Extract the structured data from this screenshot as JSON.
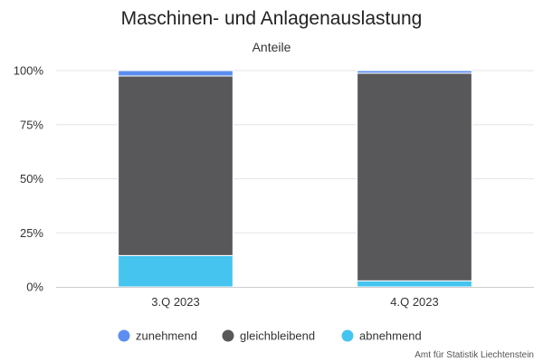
{
  "chart_data": {
    "type": "bar",
    "stacked": true,
    "title": "Maschinen- und Anlagenauslastung",
    "subtitle": "Anteile",
    "categories": [
      "3.Q 2023",
      "4.Q 2023"
    ],
    "series": [
      {
        "name": "abnehmend",
        "values": [
          14.5,
          2.8
        ],
        "color": "#45c4f0"
      },
      {
        "name": "gleichbleibend",
        "values": [
          83.0,
          96.0
        ],
        "color": "#58585a"
      },
      {
        "name": "zunehmend",
        "values": [
          2.5,
          1.2
        ],
        "color": "#5b8ef0"
      }
    ],
    "legend_order": [
      "zunehmend",
      "gleichbleibend",
      "abnehmend"
    ],
    "yticks": [
      "0%",
      "25%",
      "50%",
      "75%",
      "100%"
    ],
    "ytick_values": [
      0,
      25,
      50,
      75,
      100
    ],
    "ylim": [
      0,
      100
    ],
    "grid": true,
    "legend_position": "bottom",
    "credit": "Amt für Statistik Liechtenstein"
  }
}
